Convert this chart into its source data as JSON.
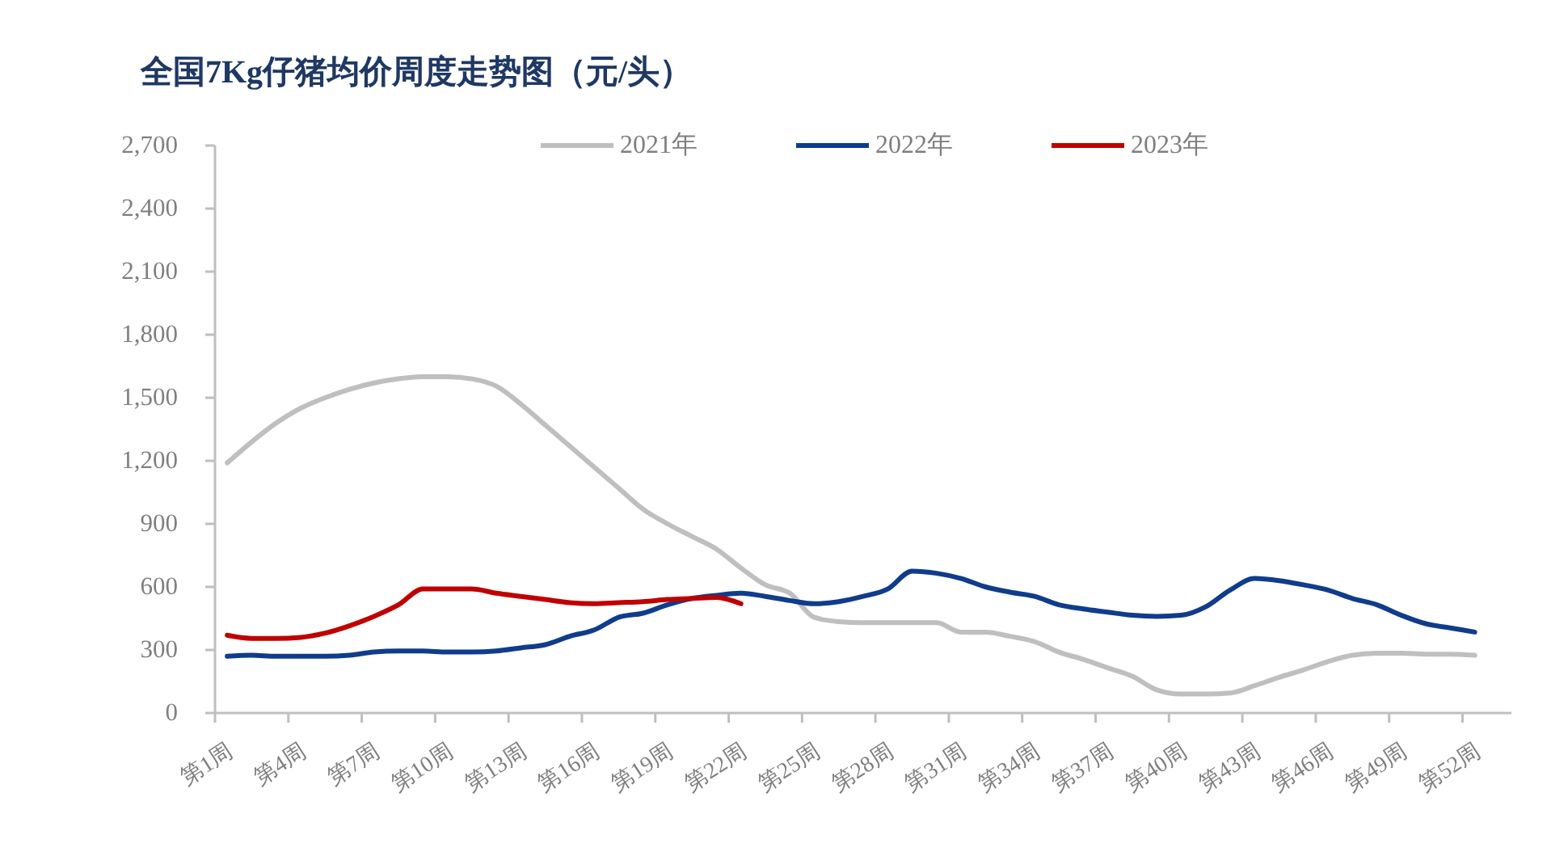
{
  "chart_data": {
    "type": "line",
    "title": "全国7Kg仔猪均价周度走势图（元/头）",
    "categories": [
      "第1周",
      null,
      null,
      "第4周",
      null,
      null,
      "第7周",
      null,
      null,
      "第10周",
      null,
      null,
      "第13周",
      null,
      null,
      "第16周",
      null,
      null,
      "第19周",
      null,
      null,
      "第22周",
      null,
      null,
      "第25周",
      null,
      null,
      "第28周",
      null,
      null,
      "第31周",
      null,
      null,
      "第34周",
      null,
      null,
      "第37周",
      null,
      null,
      "第40周",
      null,
      null,
      "第43周",
      null,
      null,
      "第46周",
      null,
      null,
      "第49周",
      null,
      null,
      "第52周",
      null
    ],
    "series": [
      {
        "name": "2021年",
        "color": "#bfbfbf",
        "values": [
          1190,
          1290,
          1380,
          1450,
          1500,
          1540,
          1570,
          1590,
          1600,
          1600,
          1590,
          1555,
          1470,
          1370,
          1270,
          1170,
          1070,
          970,
          900,
          840,
          780,
          690,
          610,
          570,
          455,
          435,
          430,
          430,
          430,
          430,
          385,
          385,
          365,
          340,
          290,
          255,
          215,
          175,
          110,
          90,
          90,
          95,
          130,
          170,
          205,
          245,
          275,
          285,
          285,
          280,
          280,
          275,
          null
        ]
      },
      {
        "name": "2022年",
        "color": "#0f3c8c",
        "values": [
          270,
          275,
          270,
          270,
          270,
          275,
          290,
          295,
          295,
          290,
          290,
          295,
          310,
          325,
          365,
          395,
          455,
          475,
          515,
          545,
          560,
          570,
          555,
          535,
          520,
          530,
          555,
          590,
          675,
          665,
          640,
          600,
          575,
          555,
          515,
          495,
          480,
          465,
          460,
          465,
          505,
          585,
          640,
          630,
          610,
          585,
          545,
          515,
          465,
          425,
          405,
          385,
          null
        ]
      },
      {
        "name": "2023年",
        "color": "#c00000",
        "values": [
          370,
          355,
          355,
          360,
          380,
          415,
          460,
          515,
          590,
          590,
          590,
          570,
          555,
          540,
          525,
          520,
          525,
          530,
          540,
          545,
          550,
          520,
          null,
          null,
          null,
          null,
          null,
          null,
          null,
          null,
          null,
          null,
          null,
          null,
          null,
          null,
          null,
          null,
          null,
          null,
          null,
          null,
          null,
          null,
          null,
          null,
          null,
          null,
          null,
          null,
          null,
          null,
          null
        ]
      }
    ],
    "ylim": [
      0,
      2700
    ],
    "yticks": [
      0,
      300,
      600,
      900,
      {
        "value": 1200,
        "label": "1,200"
      },
      {
        "value": 1500,
        "label": "1,500"
      },
      {
        "value": 1800,
        "label": "1,800"
      },
      {
        "value": 2100,
        "label": "2,100"
      },
      {
        "value": 2400,
        "label": "2,400"
      },
      {
        "value": 2700,
        "label": "2,700"
      }
    ],
    "legend": "top",
    "line_style": "solid"
  }
}
